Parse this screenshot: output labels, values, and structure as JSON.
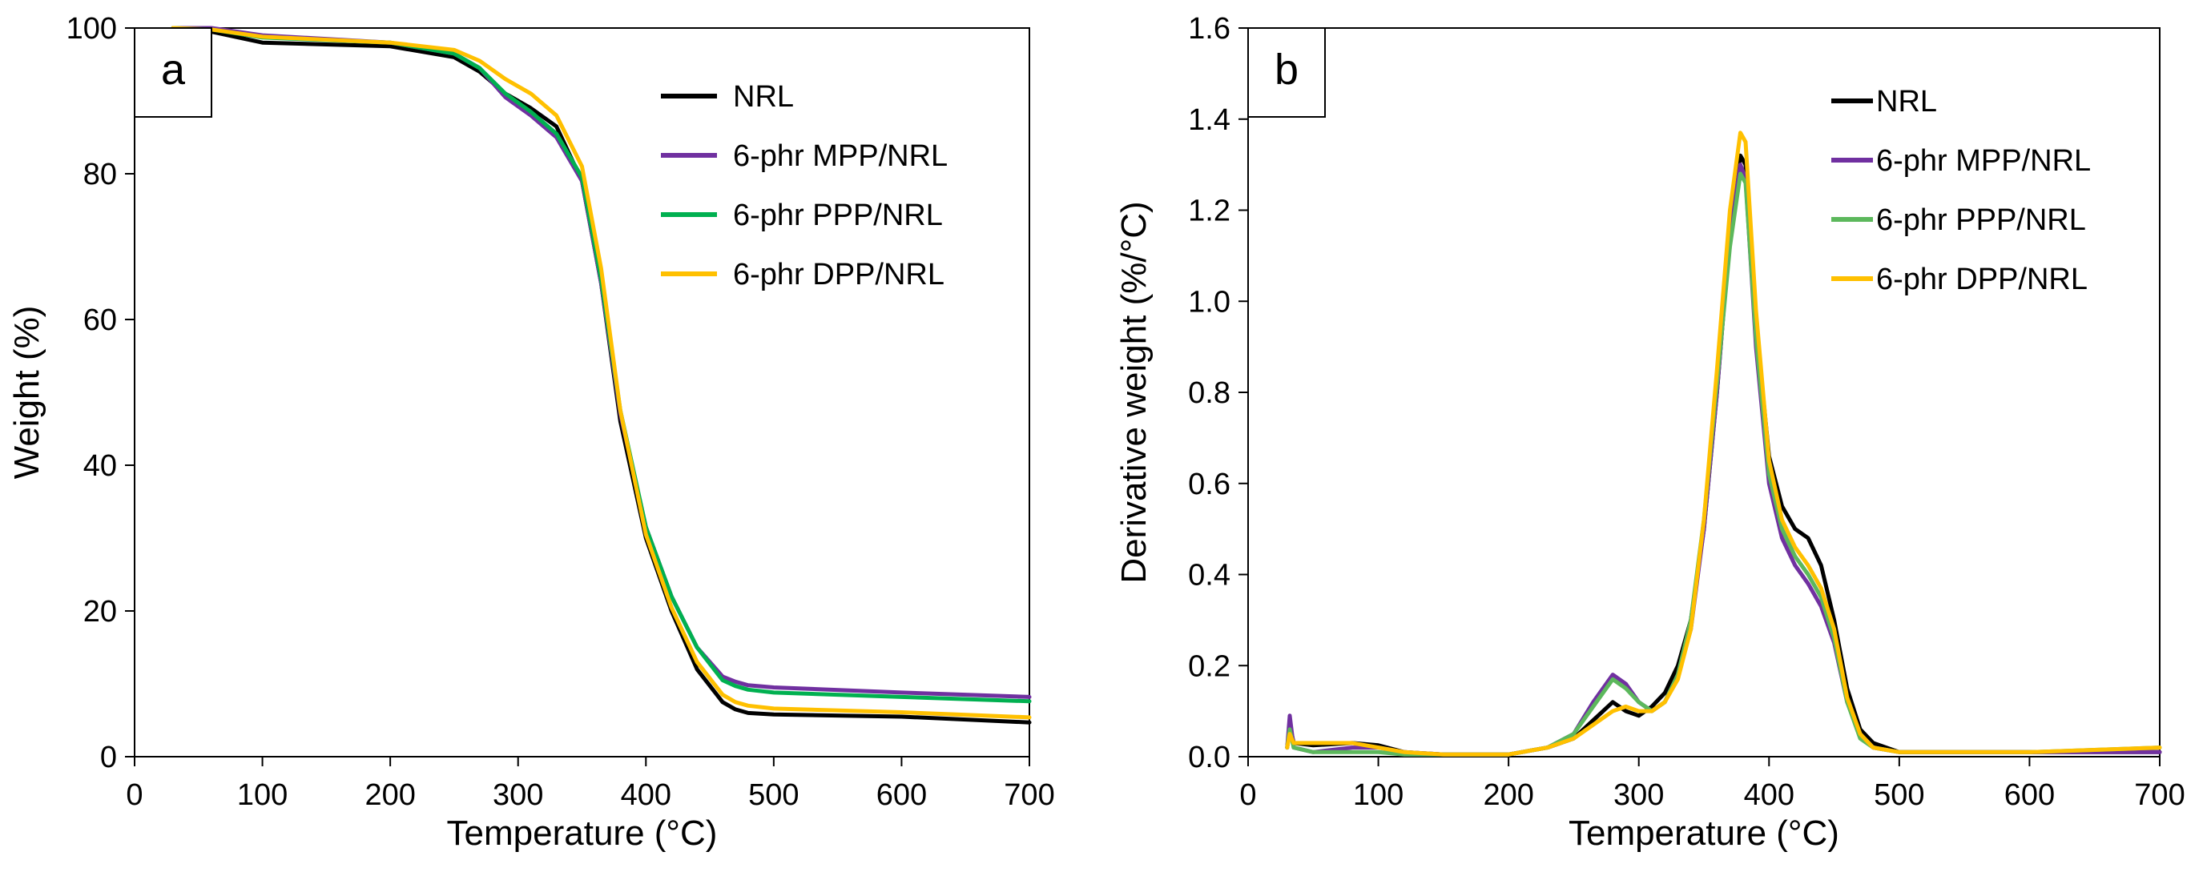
{
  "chart_data": [
    {
      "panel_label": "a",
      "type": "line",
      "xlabel": "Temperature (°C)",
      "ylabel": "Weight (%)",
      "xlim": [
        0,
        700
      ],
      "ylim": [
        0,
        100
      ],
      "xticks": [
        "0",
        "100",
        "200",
        "300",
        "400",
        "500",
        "600",
        "700"
      ],
      "yticks": [
        "0",
        "20",
        "40",
        "60",
        "80",
        "100"
      ],
      "grid": false,
      "legend_position": "top-right",
      "series": [
        {
          "name": "NRL",
          "color": "#000000",
          "x": [
            30,
            60,
            100,
            200,
            250,
            270,
            290,
            310,
            330,
            350,
            365,
            380,
            400,
            420,
            440,
            460,
            470,
            480,
            500,
            600,
            700
          ],
          "y": [
            100,
            99.5,
            98,
            97.5,
            96,
            94,
            91,
            89,
            86.5,
            79,
            65,
            46,
            30,
            20,
            12,
            7.5,
            6.5,
            6,
            5.8,
            5.5,
            4.7
          ]
        },
        {
          "name": "6-phr MPP/NRL",
          "color": "#7030A0",
          "x": [
            30,
            60,
            100,
            200,
            250,
            270,
            290,
            310,
            330,
            350,
            365,
            380,
            400,
            420,
            440,
            460,
            470,
            480,
            500,
            600,
            700
          ],
          "y": [
            100,
            100,
            99,
            98,
            96.5,
            94.5,
            90.5,
            88,
            85,
            79,
            65,
            47,
            31.5,
            22,
            15,
            11,
            10.3,
            9.8,
            9.5,
            8.8,
            8.2
          ]
        },
        {
          "name": "6-phr PPP/NRL",
          "color": "#00B050",
          "x": [
            30,
            60,
            100,
            200,
            250,
            270,
            290,
            310,
            330,
            350,
            365,
            380,
            400,
            420,
            440,
            460,
            470,
            480,
            500,
            600,
            700
          ],
          "y": [
            100,
            99.8,
            98.7,
            98,
            96.5,
            94.5,
            91,
            88.5,
            85.5,
            79.5,
            65.5,
            47.5,
            31.5,
            22,
            15,
            10.5,
            9.7,
            9.2,
            8.8,
            8.2,
            7.6
          ]
        },
        {
          "name": "6-phr DPP/NRL",
          "color": "#FFC000",
          "x": [
            30,
            60,
            100,
            200,
            250,
            270,
            290,
            310,
            330,
            350,
            365,
            380,
            400,
            420,
            440,
            460,
            470,
            480,
            500,
            600,
            700
          ],
          "y": [
            100,
            99.8,
            98.8,
            98,
            97,
            95.5,
            93,
            91,
            88,
            81,
            67,
            47.5,
            30.5,
            20.5,
            13,
            8.5,
            7.5,
            7,
            6.6,
            6.1,
            5.4
          ]
        }
      ]
    },
    {
      "panel_label": "b",
      "type": "line",
      "xlabel": "Temperature (°C)",
      "ylabel": "Derivative weight (%/°C)",
      "xlim": [
        0,
        700
      ],
      "ylim": [
        0,
        1.6
      ],
      "xticks": [
        "0",
        "100",
        "200",
        "300",
        "400",
        "500",
        "600",
        "700"
      ],
      "yticks": [
        "0.0",
        "0.2",
        "0.4",
        "0.6",
        "0.8",
        "1.0",
        "1.2",
        "1.4",
        "1.6"
      ],
      "grid": false,
      "legend_position": "top-right",
      "series": [
        {
          "name": "NRL",
          "color": "#000000",
          "x": [
            30,
            32,
            35,
            50,
            80,
            100,
            120,
            150,
            200,
            230,
            250,
            265,
            280,
            290,
            300,
            310,
            320,
            330,
            340,
            350,
            360,
            370,
            378,
            382,
            390,
            400,
            410,
            420,
            430,
            440,
            450,
            460,
            470,
            480,
            500,
            600,
            700
          ],
          "y": [
            0.02,
            0.07,
            0.03,
            0.025,
            0.03,
            0.025,
            0.01,
            0.005,
            0.005,
            0.02,
            0.04,
            0.08,
            0.12,
            0.1,
            0.09,
            0.11,
            0.14,
            0.2,
            0.3,
            0.5,
            0.8,
            1.15,
            1.32,
            1.3,
            0.95,
            0.66,
            0.55,
            0.5,
            0.48,
            0.42,
            0.3,
            0.15,
            0.06,
            0.03,
            0.01,
            0.01,
            0.01
          ]
        },
        {
          "name": "6-phr MPP/NRL",
          "color": "#7030A0",
          "x": [
            30,
            32,
            35,
            50,
            80,
            100,
            120,
            150,
            200,
            230,
            250,
            265,
            280,
            290,
            300,
            310,
            320,
            330,
            340,
            350,
            360,
            370,
            378,
            382,
            390,
            400,
            410,
            420,
            430,
            440,
            450,
            460,
            470,
            480,
            500,
            600,
            700
          ],
          "y": [
            0.02,
            0.09,
            0.02,
            0.01,
            0.02,
            0.02,
            0.01,
            0.005,
            0.005,
            0.02,
            0.05,
            0.12,
            0.18,
            0.16,
            0.12,
            0.1,
            0.12,
            0.18,
            0.28,
            0.5,
            0.8,
            1.15,
            1.3,
            1.27,
            0.9,
            0.6,
            0.48,
            0.42,
            0.38,
            0.33,
            0.25,
            0.12,
            0.05,
            0.02,
            0.01,
            0.01,
            0.01
          ]
        },
        {
          "name": "6-phr PPP/NRL",
          "color": "#5CB85C",
          "x": [
            30,
            32,
            35,
            50,
            80,
            100,
            120,
            150,
            200,
            230,
            250,
            265,
            280,
            290,
            300,
            310,
            320,
            330,
            340,
            350,
            360,
            370,
            378,
            382,
            390,
            400,
            410,
            420,
            430,
            440,
            450,
            460,
            470,
            480,
            500,
            600,
            700
          ],
          "y": [
            0.02,
            0.06,
            0.02,
            0.01,
            0.01,
            0.01,
            0.005,
            0.005,
            0.005,
            0.02,
            0.05,
            0.11,
            0.17,
            0.15,
            0.12,
            0.1,
            0.12,
            0.18,
            0.3,
            0.52,
            0.82,
            1.12,
            1.28,
            1.26,
            0.92,
            0.62,
            0.5,
            0.44,
            0.4,
            0.35,
            0.26,
            0.12,
            0.04,
            0.02,
            0.01,
            0.01,
            0.02
          ]
        },
        {
          "name": "6-phr DPP/NRL",
          "color": "#FFC000",
          "x": [
            30,
            32,
            35,
            50,
            80,
            100,
            120,
            150,
            200,
            230,
            250,
            265,
            280,
            290,
            300,
            310,
            320,
            330,
            340,
            350,
            360,
            370,
            378,
            382,
            390,
            400,
            410,
            420,
            430,
            440,
            450,
            460,
            470,
            480,
            500,
            600,
            700
          ],
          "y": [
            0.02,
            0.05,
            0.03,
            0.03,
            0.03,
            0.02,
            0.01,
            0.005,
            0.005,
            0.02,
            0.04,
            0.07,
            0.1,
            0.11,
            0.1,
            0.1,
            0.12,
            0.17,
            0.28,
            0.52,
            0.85,
            1.2,
            1.37,
            1.35,
            0.98,
            0.65,
            0.52,
            0.46,
            0.42,
            0.37,
            0.28,
            0.13,
            0.05,
            0.02,
            0.01,
            0.01,
            0.02
          ]
        }
      ]
    }
  ]
}
